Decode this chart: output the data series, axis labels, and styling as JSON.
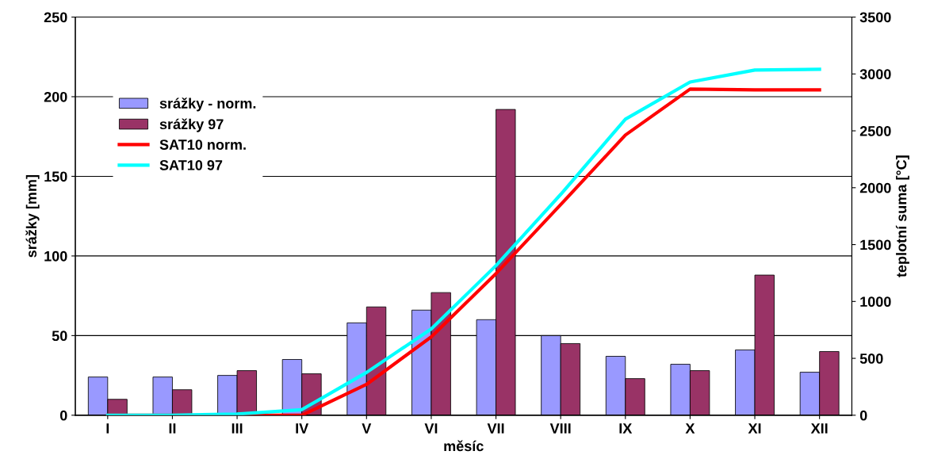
{
  "chart_data": {
    "type": "bar",
    "xlabel": "měsíc",
    "ylabel": "srážky [mm]",
    "y2label": "teplotní suma [°C]",
    "categories": [
      "I",
      "II",
      "III",
      "IV",
      "V",
      "VI",
      "VII",
      "VIII",
      "IX",
      "X",
      "XI",
      "XII"
    ],
    "series": [
      {
        "name": "srážky - norm.",
        "color": "#9999ff",
        "values": [
          24,
          24,
          25,
          35,
          58,
          66,
          60,
          50,
          37,
          32,
          41,
          27
        ]
      },
      {
        "name": "srážky 97",
        "color": "#993366",
        "values": [
          10,
          16,
          28,
          26,
          68,
          77,
          192,
          45,
          23,
          28,
          88,
          40
        ]
      },
      {
        "name": "SAT10 norm.",
        "type": "line",
        "axis": "y2",
        "color": "#ff0000",
        "values": [
          0,
          0,
          0,
          0,
          271,
          689,
          1245,
          1851,
          2463,
          2867,
          2860,
          2860
        ]
      },
      {
        "name": "SAT10 97",
        "type": "line",
        "axis": "y2",
        "color": "#00ffff",
        "values": [
          0,
          0,
          10,
          49,
          376,
          758,
          1315,
          1941,
          2602,
          2929,
          3034,
          3041
        ]
      }
    ],
    "ylim": [
      0,
      250
    ],
    "yticks": [
      0,
      50,
      100,
      150,
      200,
      250
    ],
    "y2lim": [
      0,
      3500
    ],
    "y2ticks": [
      0,
      500,
      1000,
      1500,
      2000,
      2500,
      3000,
      3500
    ],
    "grid": "y",
    "legend": "top left",
    "marker": "none",
    "line_style": "solid"
  }
}
